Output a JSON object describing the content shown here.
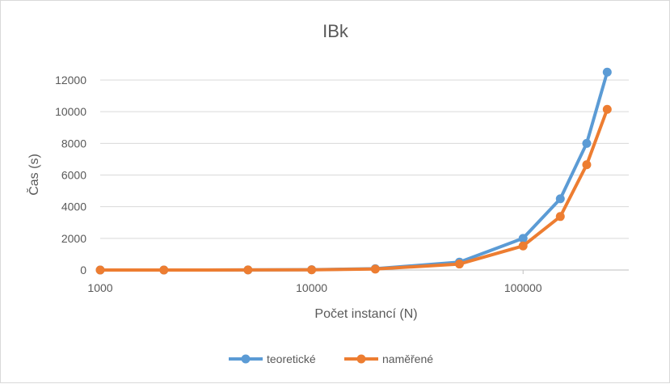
{
  "chart_data": {
    "type": "line",
    "title": "IBk",
    "xlabel": "Počet instancí (N)",
    "ylabel": "Čas (s)",
    "x_scale": "log",
    "xlim": [
      1000,
      316228
    ],
    "ylim": [
      0,
      12000
    ],
    "x_ticks": [
      1000,
      10000,
      100000
    ],
    "x_tick_labels": [
      "1000",
      "10000",
      "100000"
    ],
    "y_ticks": [
      0,
      2000,
      4000,
      6000,
      8000,
      10000,
      12000
    ],
    "y_tick_labels": [
      "0",
      "2000",
      "4000",
      "6000",
      "8000",
      "10000",
      "12000"
    ],
    "grid": "horizontal",
    "legend_position": "bottom",
    "x": [
      1000,
      2000,
      5000,
      10000,
      20000,
      50000,
      100000,
      150000,
      200000,
      250000
    ],
    "series": [
      {
        "name": "teoretické",
        "color": "#5B9BD5",
        "values": [
          0.2,
          0.8,
          5,
          20,
          80,
          500,
          2000,
          4500,
          8000,
          12500
        ]
      },
      {
        "name": "naměřené",
        "color": "#ED7D31",
        "values": [
          0.2,
          0.6,
          4,
          15,
          60,
          380,
          1520,
          3380,
          6650,
          10150
        ]
      }
    ]
  }
}
